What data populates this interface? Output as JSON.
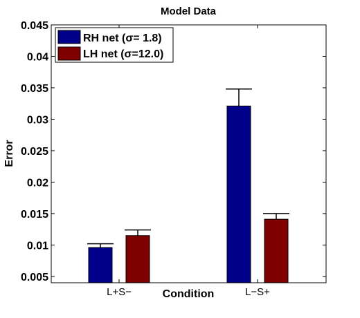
{
  "chart_data": {
    "type": "bar",
    "title": "Model Data",
    "xlabel": "Condition",
    "ylabel": "Error",
    "categories": [
      "L+S−",
      "L−S+"
    ],
    "ylim": [
      0.004,
      0.045
    ],
    "yticks": [
      "0.005",
      "0.01",
      "0.015",
      "0.02",
      "0.025",
      "0.03",
      "0.035",
      "0.04",
      "0.045"
    ],
    "legend_position": "top-left",
    "grid": false,
    "series": [
      {
        "name": "RH net (σ= 1.8)",
        "color": "#00008b",
        "values": [
          0.0096,
          0.0321
        ],
        "errors": [
          0.0006,
          0.0027
        ]
      },
      {
        "name": "LH net (σ=12.0)",
        "color": "#800000",
        "values": [
          0.0115,
          0.0141
        ],
        "errors": [
          0.0009,
          0.0009
        ]
      }
    ]
  }
}
